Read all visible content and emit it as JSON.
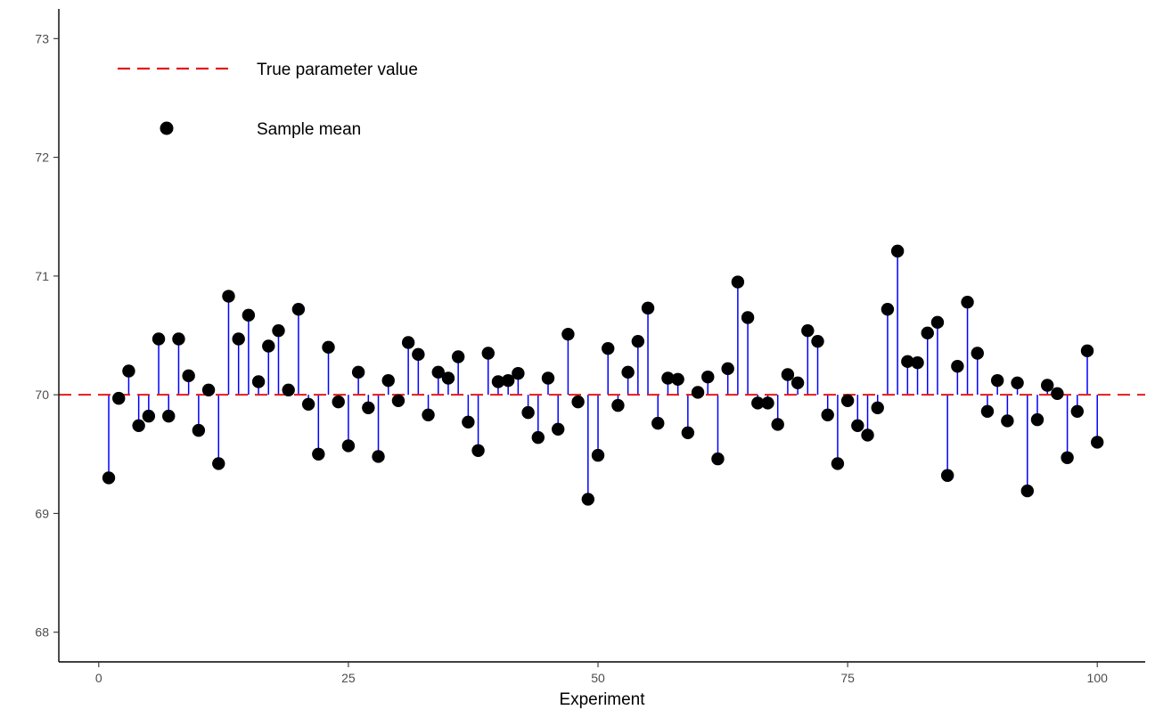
{
  "chart_data": {
    "type": "scatter",
    "title": "",
    "xlabel": "Experiment",
    "ylabel": "",
    "xlim": [
      -4.0,
      104.8
    ],
    "ylim": [
      67.75,
      73.25
    ],
    "x_ticks": [
      0,
      25,
      50,
      75,
      100
    ],
    "y_ticks": [
      68,
      69,
      70,
      71,
      72,
      73
    ],
    "x_tick_labels": [
      "0",
      "25",
      "50",
      "75",
      "100"
    ],
    "y_tick_labels": [
      "68",
      "69",
      "70",
      "71",
      "72",
      "73"
    ],
    "grid": false,
    "legend_position": "top-left",
    "reference_line": {
      "name": "True parameter value",
      "value": 70,
      "color": "#e41a1c",
      "style": "dashed"
    },
    "series": [
      {
        "name": "Sample mean",
        "color": "#000000",
        "segment_color": "#0000ff",
        "x": [
          1,
          2,
          3,
          4,
          5,
          6,
          7,
          8,
          9,
          10,
          11,
          12,
          13,
          14,
          15,
          16,
          17,
          18,
          19,
          20,
          21,
          22,
          23,
          24,
          25,
          26,
          27,
          28,
          29,
          30,
          31,
          32,
          33,
          34,
          35,
          36,
          37,
          38,
          39,
          40,
          41,
          42,
          43,
          44,
          45,
          46,
          47,
          48,
          49,
          50,
          51,
          52,
          53,
          54,
          55,
          56,
          57,
          58,
          59,
          60,
          61,
          62,
          63,
          64,
          65,
          66,
          67,
          68,
          69,
          70,
          71,
          72,
          73,
          74,
          75,
          76,
          77,
          78,
          79,
          80,
          81,
          82,
          83,
          84,
          85,
          86,
          87,
          88,
          89,
          90,
          91,
          92,
          93,
          94,
          95,
          96,
          97,
          98,
          99,
          100
        ],
        "values": [
          69.3,
          69.97,
          70.2,
          69.74,
          69.82,
          70.47,
          69.82,
          70.47,
          70.16,
          69.7,
          70.04,
          69.42,
          70.83,
          70.47,
          70.67,
          70.11,
          70.41,
          70.54,
          70.04,
          70.72,
          69.92,
          69.5,
          70.4,
          69.94,
          69.57,
          70.19,
          69.89,
          69.48,
          70.12,
          69.95,
          70.44,
          70.34,
          69.83,
          70.19,
          70.14,
          70.32,
          69.77,
          69.53,
          70.35,
          70.11,
          70.12,
          70.18,
          69.85,
          69.64,
          70.14,
          69.71,
          70.51,
          69.94,
          69.12,
          69.49,
          70.39,
          69.91,
          70.19,
          70.45,
          70.73,
          69.76,
          70.14,
          70.13,
          69.68,
          70.02,
          70.15,
          69.46,
          70.22,
          70.95,
          70.65,
          69.93,
          69.93,
          69.75,
          70.17,
          70.1,
          70.54,
          70.45,
          69.83,
          69.42,
          69.95,
          69.74,
          69.66,
          69.89,
          70.72,
          71.21,
          70.28,
          70.27,
          70.52,
          70.61,
          69.32,
          70.24,
          70.78,
          70.35,
          69.86,
          70.12,
          69.78,
          70.1,
          69.19,
          69.79,
          70.08,
          70.01,
          69.47,
          69.86,
          70.37,
          69.6
        ]
      }
    ]
  }
}
